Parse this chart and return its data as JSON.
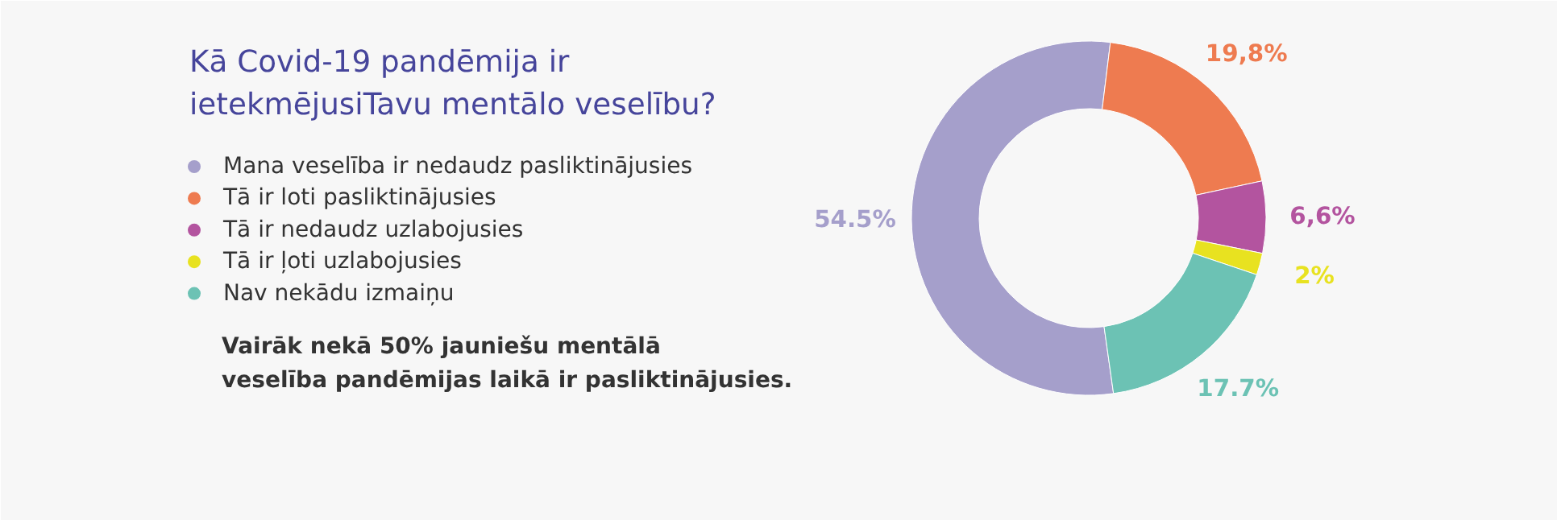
{
  "chart_data": {
    "type": "donut",
    "title": "Kā Covid-19 pandēmija ir\nietekmējusiTavu mentālo veselību?",
    "categories": [
      "Mana veselība ir nedaudz pasliktinājusies",
      "Tā ir loti pasliktinājusies",
      "Tā ir nedaudz uzlabojusies",
      "Tā ir ļoti uzlabojusies",
      "Nav nekādu izmaiņu"
    ],
    "values": [
      54.5,
      19.8,
      6.6,
      2,
      17.7
    ],
    "value_labels": [
      "54.5%",
      "19,8%",
      "6,6%",
      "2%",
      "17.7%"
    ],
    "colors": [
      "#a59fcb",
      "#ee7b50",
      "#b3549f",
      "#e8e220",
      "#6cc2b4"
    ],
    "legend": "left",
    "annotations": [
      "Vairāk nekā 50% jauniešu mentālā\nveselība pandēmijas laikā ir pasliktinājusies."
    ]
  }
}
